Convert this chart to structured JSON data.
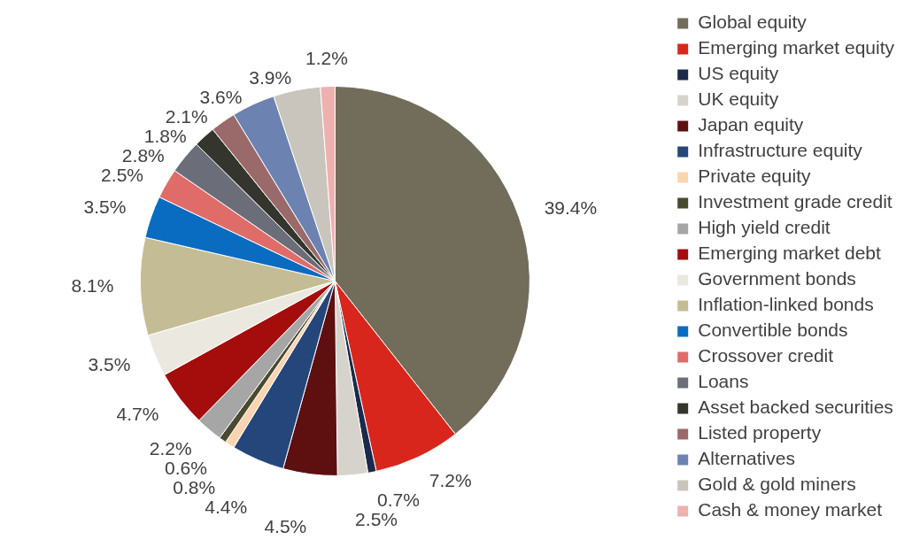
{
  "chart_data": {
    "type": "pie",
    "categories": [
      "Global equity",
      "Emerging market equity",
      "US equity",
      "UK equity",
      "Japan equity",
      "Infrastructure equity",
      "Private equity",
      "Investment grade credit",
      "High yield credit",
      "Emerging market debt",
      "Government bonds",
      "Inflation-linked bonds",
      "Convertible bonds",
      "Crossover credit",
      "Loans",
      "Asset backed securities",
      "Listed property",
      "Alternatives",
      "Gold & gold miners",
      "Cash & money market"
    ],
    "values": [
      39.4,
      7.2,
      0.7,
      2.5,
      4.5,
      4.4,
      0.8,
      0.6,
      2.2,
      4.7,
      3.5,
      8.1,
      3.5,
      2.5,
      2.8,
      1.8,
      2.1,
      3.6,
      3.9,
      1.2
    ],
    "value_labels": [
      "39.4%",
      "7.2%",
      "0.7%",
      "2.5%",
      "4.5%",
      "4.4%",
      "0.8%",
      "0.6%",
      "2.2%",
      "4.7%",
      "3.5%",
      "8.1%",
      "3.5%",
      "2.5%",
      "2.8%",
      "1.8%",
      "2.1%",
      "3.6%",
      "3.9%",
      "1.2%"
    ],
    "colors": [
      "#726c5a",
      "#d9261c",
      "#1b2a4a",
      "#d6d3cc",
      "#5e0f0f",
      "#24467a",
      "#f9d4b0",
      "#4a4a2e",
      "#a6a6a6",
      "#a50d0d",
      "#ebe9df",
      "#c4bc94",
      "#0a6cc0",
      "#e06c6a",
      "#6b6e78",
      "#34352c",
      "#9a6a6a",
      "#6c82b0",
      "#c9c5bc",
      "#efb0b0"
    ],
    "legend": "right"
  }
}
